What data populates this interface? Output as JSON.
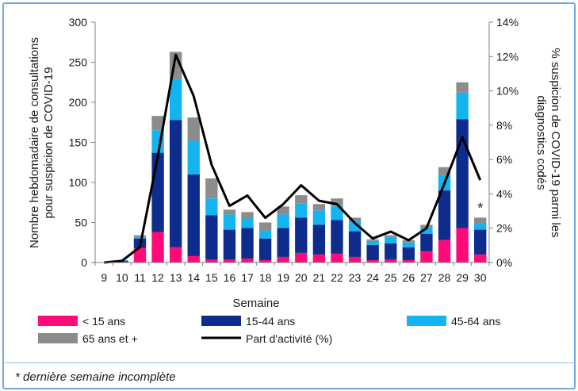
{
  "chart_data": {
    "type": "bar",
    "stacked": true,
    "categories": [
      "9",
      "10",
      "11",
      "12",
      "13",
      "14",
      "15",
      "16",
      "17",
      "18",
      "19",
      "20",
      "21",
      "22",
      "23",
      "24",
      "25",
      "26",
      "27",
      "28",
      "29",
      "30"
    ],
    "series": [
      {
        "name": "< 15 ans",
        "color": "#ff0a78",
        "values": [
          0,
          1,
          18,
          38,
          19,
          8,
          4,
          4,
          5,
          3,
          7,
          12,
          10,
          11,
          7,
          3,
          4,
          3,
          14,
          28,
          43,
          10
        ]
      },
      {
        "name": "15-44 ans",
        "color": "#0d2c8c",
        "values": [
          0,
          1,
          12,
          99,
          159,
          102,
          55,
          37,
          38,
          27,
          36,
          44,
          37,
          42,
          32,
          19,
          20,
          16,
          22,
          62,
          136,
          31
        ]
      },
      {
        "name": "45-64 ans",
        "color": "#14b4f0",
        "values": [
          0,
          1,
          2,
          28,
          51,
          42,
          21,
          19,
          12,
          10,
          17,
          18,
          18,
          17,
          13,
          5,
          8,
          6,
          8,
          18,
          33,
          7
        ]
      },
      {
        "name": "65 ans et +",
        "color": "#8c8c8c",
        "values": [
          0,
          0,
          2,
          18,
          34,
          29,
          25,
          6,
          8,
          10,
          10,
          10,
          8,
          10,
          4,
          2,
          2,
          3,
          3,
          11,
          13,
          8
        ]
      }
    ],
    "line_series": {
      "name": "Part d'activité (%)",
      "axis": "right",
      "color": "#000000",
      "values": [
        0,
        0.1,
        0.9,
        6.2,
        12.1,
        9.7,
        5.7,
        3.3,
        3.9,
        2.6,
        3.4,
        4.5,
        3.6,
        3.4,
        2.3,
        1.4,
        1.8,
        1.3,
        2.0,
        4.6,
        7.3,
        4.8
      ]
    },
    "xlabel": "Semaine",
    "ylabel": "Nombre  hebdomadaire de consultations pour suspicion de COVID-19",
    "ylabel_lines": [
      "Nombre  hebdomadaire de consultations",
      "pour suspicion de COVID-19"
    ],
    "y2label": "% suspicion de COVID-19 parmi les diagnostics codés",
    "y2label_lines": [
      "% suspicion de COVID-19 parmi les",
      "diagnostics codés"
    ],
    "ylim": [
      0,
      300
    ],
    "yticks": [
      "0",
      "50",
      "100",
      "150",
      "200",
      "250",
      "300"
    ],
    "y2lim": [
      0,
      14
    ],
    "y2ticks": [
      "0%",
      "2%",
      "4%",
      "6%",
      "8%",
      "10%",
      "12%",
      "14%"
    ],
    "annotations": [
      {
        "category": "30",
        "text": "*"
      }
    ],
    "legend": {
      "placement": "bottom",
      "items": [
        "< 15 ans",
        "15-44 ans",
        "45-64 ans",
        "65 ans et +",
        "Part d'activité (%)"
      ]
    },
    "grid": false
  },
  "footnote": "* dernière semaine incomplète"
}
